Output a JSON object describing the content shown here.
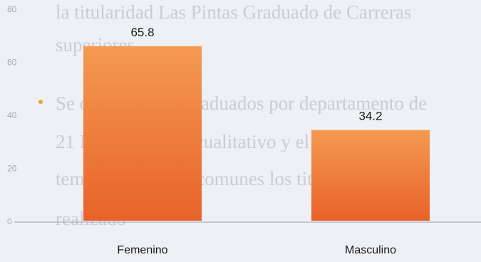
{
  "background_text": [
    "la titularidad Las Pintas Graduado de Carreras",
    "superiores",
    "Se observa a los graduados por departamento de",
    "21 Nivel superior cualitativo y el de los",
    "temas de estudios comunes los titulados",
    "realizado"
  ],
  "colors": {
    "bar_top": "#f49a52",
    "bar_bottom": "#e8622a",
    "bullet": "#e8a23a",
    "axis": "#b4b9c6",
    "text": "#1a1a1a",
    "faded_tick": "#a5a9b3"
  },
  "chart_data": {
    "type": "bar",
    "categories": [
      "Femenino",
      "Masculino"
    ],
    "values": [
      65.8,
      34.2
    ],
    "data_labels": [
      "65.8",
      "34.2"
    ],
    "yticks": [
      "80",
      "60",
      "40",
      "20",
      "0"
    ],
    "ylim": [
      0,
      80
    ],
    "title": "",
    "xlabel": "",
    "ylabel": "",
    "grid": false,
    "legend": "none"
  }
}
